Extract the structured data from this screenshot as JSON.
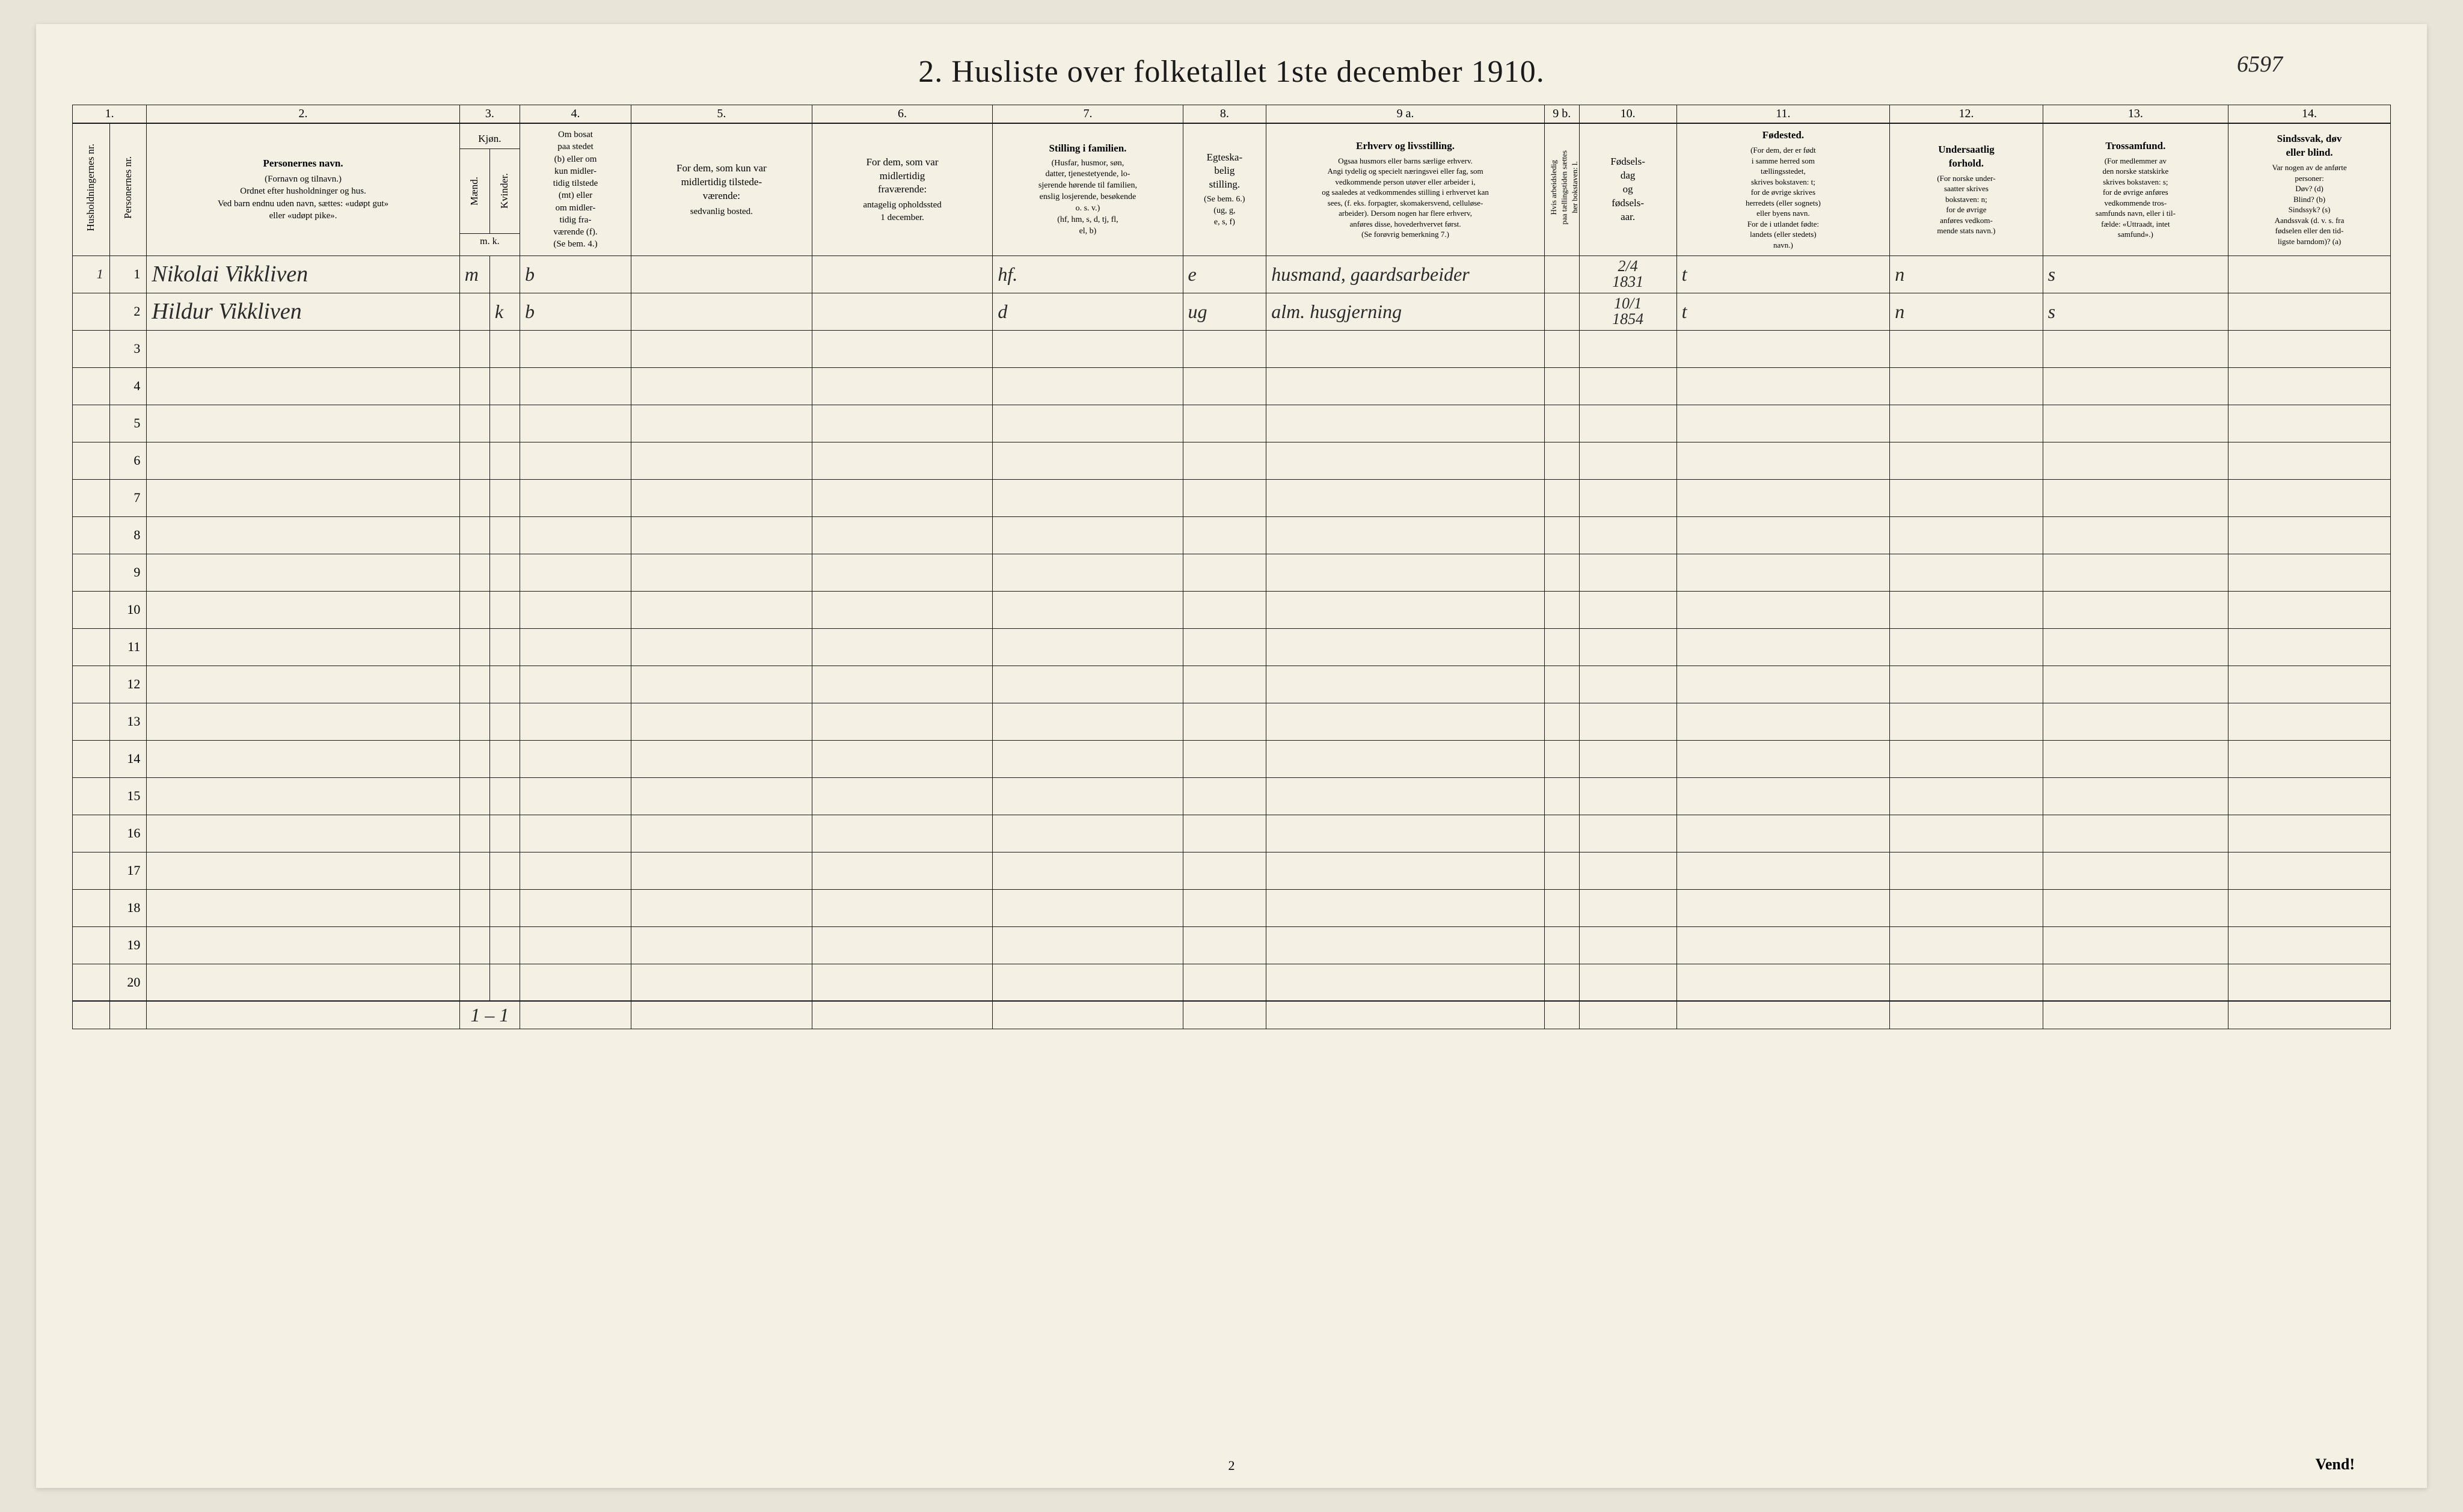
{
  "title": "2.  Husliste over folketallet 1ste december 1910.",
  "reference_number": "6597",
  "page_number": "2",
  "vend": "Vend!",
  "column_numbers": [
    "1.",
    "2.",
    "3.",
    "4.",
    "5.",
    "6.",
    "7.",
    "8.",
    "9 a.",
    "9 b.",
    "10.",
    "11.",
    "12.",
    "13.",
    "14."
  ],
  "headers": {
    "c1a": "Husholdningernes nr.",
    "c1b": "Personernes nr.",
    "c2_title": "Personernes navn.",
    "c2_sub": "(Fornavn og tilnavn.)\nOrdnet efter husholdninger og hus.\nVed barn endnu uden navn, sættes: «udøpt gut»\neller «udøpt pike».",
    "c3_title": "Kjøn.",
    "c3_m": "Mænd.",
    "c3_k": "Kvinder.",
    "c3_mk": "m.  k.",
    "c4_title": "Om bosat\npaa stedet\n(b) eller om\nkun midler-\ntidig tilstede\n(mt) eller\nom midler-\ntidig fra-\nværende (f).\n(Se bem. 4.)",
    "c5_title": "For dem, som kun var\nmidlertidig tilstede-\nværende:",
    "c5_sub": "sedvanlig bosted.",
    "c6_title": "For dem, som var\nmidlertidig\nfraværende:",
    "c6_sub": "antagelig opholdssted\n1 december.",
    "c7_title": "Stilling i familien.",
    "c7_sub": "(Husfar, husmor, søn,\ndatter, tjenestetyende, lo-\nsjerende hørende til familien,\nenslig losjerende, besøkende\no. s. v.)\n(hf, hm, s, d, tj, fl,\nel, b)",
    "c8_title": "Egteska-\nbelig\nstilling.",
    "c8_sub": "(Se bem. 6.)\n(ug, g,\ne, s, f)",
    "c9a_title": "Erhverv og livsstilling.",
    "c9a_sub": "Ogsaa husmors eller barns særlige erhverv.\nAngi tydelig og specielt næringsvei eller fag, som\nvedkommende person utøver eller arbeider i,\nog saaledes at vedkommendes stilling i erhvervet kan\nsees, (f. eks. forpagter, skomakersvend, celluløse-\narbeider). Dersom nogen har flere erhverv,\nanføres disse, hovederhvervet først.\n(Se forøvrig bemerkning 7.)",
    "c9b": "Hvis arbeidsledig\npaa tællingstiden sættes\nher bokstaven: l.",
    "c10_title": "Fødsels-\ndag\nog\nfødsels-\naar.",
    "c11_title": "Fødested.",
    "c11_sub": "(For dem, der er født\ni samme herred som\ntællingsstedet,\nskrives bokstaven: t;\nfor de øvrige skrives\nherredets (eller sognets)\neller byens navn.\nFor de i utlandet fødte:\nlandets (eller stedets)\nnavn.)",
    "c12_title": "Undersaatlig\nforhold.",
    "c12_sub": "(For norske under-\nsaatter skrives\nbokstaven: n;\nfor de øvrige\nanføres vedkom-\nmende stats navn.)",
    "c13_title": "Trossamfund.",
    "c13_sub": "(For medlemmer av\nden norske statskirke\nskrives bokstaven: s;\nfor de øvrige anføres\nvedkommende tros-\nsamfunds navn, eller i til-\nfælde: «Uttraadt, intet\nsamfund».)",
    "c14_title": "Sindssvak, døv\neller blind.",
    "c14_sub": "Var nogen av de anførte\npersoner:\nDøv?    (d)\nBlind?   (b)\nSindssyk? (s)\nAandssvak (d. v. s. fra\nfødselen eller den tid-\nligste barndom)? (a)"
  },
  "rows": [
    {
      "hh": "1",
      "pn": "1",
      "name": "Nikolai Vikkliven",
      "sex_m": "m",
      "sex_k": "",
      "residence": "b",
      "temp_present": "",
      "temp_absent": "",
      "family_pos": "hf.",
      "marital": "e",
      "occupation": "husmand, gaardsarbeider",
      "unemployed": "",
      "birth": "2/4\n1831",
      "birthplace": "t",
      "nationality": "n",
      "religion": "s",
      "disability": ""
    },
    {
      "hh": "",
      "pn": "2",
      "name": "Hildur Vikkliven",
      "sex_m": "",
      "sex_k": "k",
      "residence": "b",
      "temp_present": "",
      "temp_absent": "",
      "family_pos": "d",
      "marital": "ug",
      "occupation": "alm. husgjerning",
      "unemployed": "",
      "birth": "10/1\n1854",
      "birthplace": "t",
      "nationality": "n",
      "religion": "s",
      "disability": ""
    }
  ],
  "empty_row_numbers": [
    "3",
    "4",
    "5",
    "6",
    "7",
    "8",
    "9",
    "10",
    "11",
    "12",
    "13",
    "14",
    "15",
    "16",
    "17",
    "18",
    "19",
    "20"
  ],
  "totals": "1 – 1"
}
